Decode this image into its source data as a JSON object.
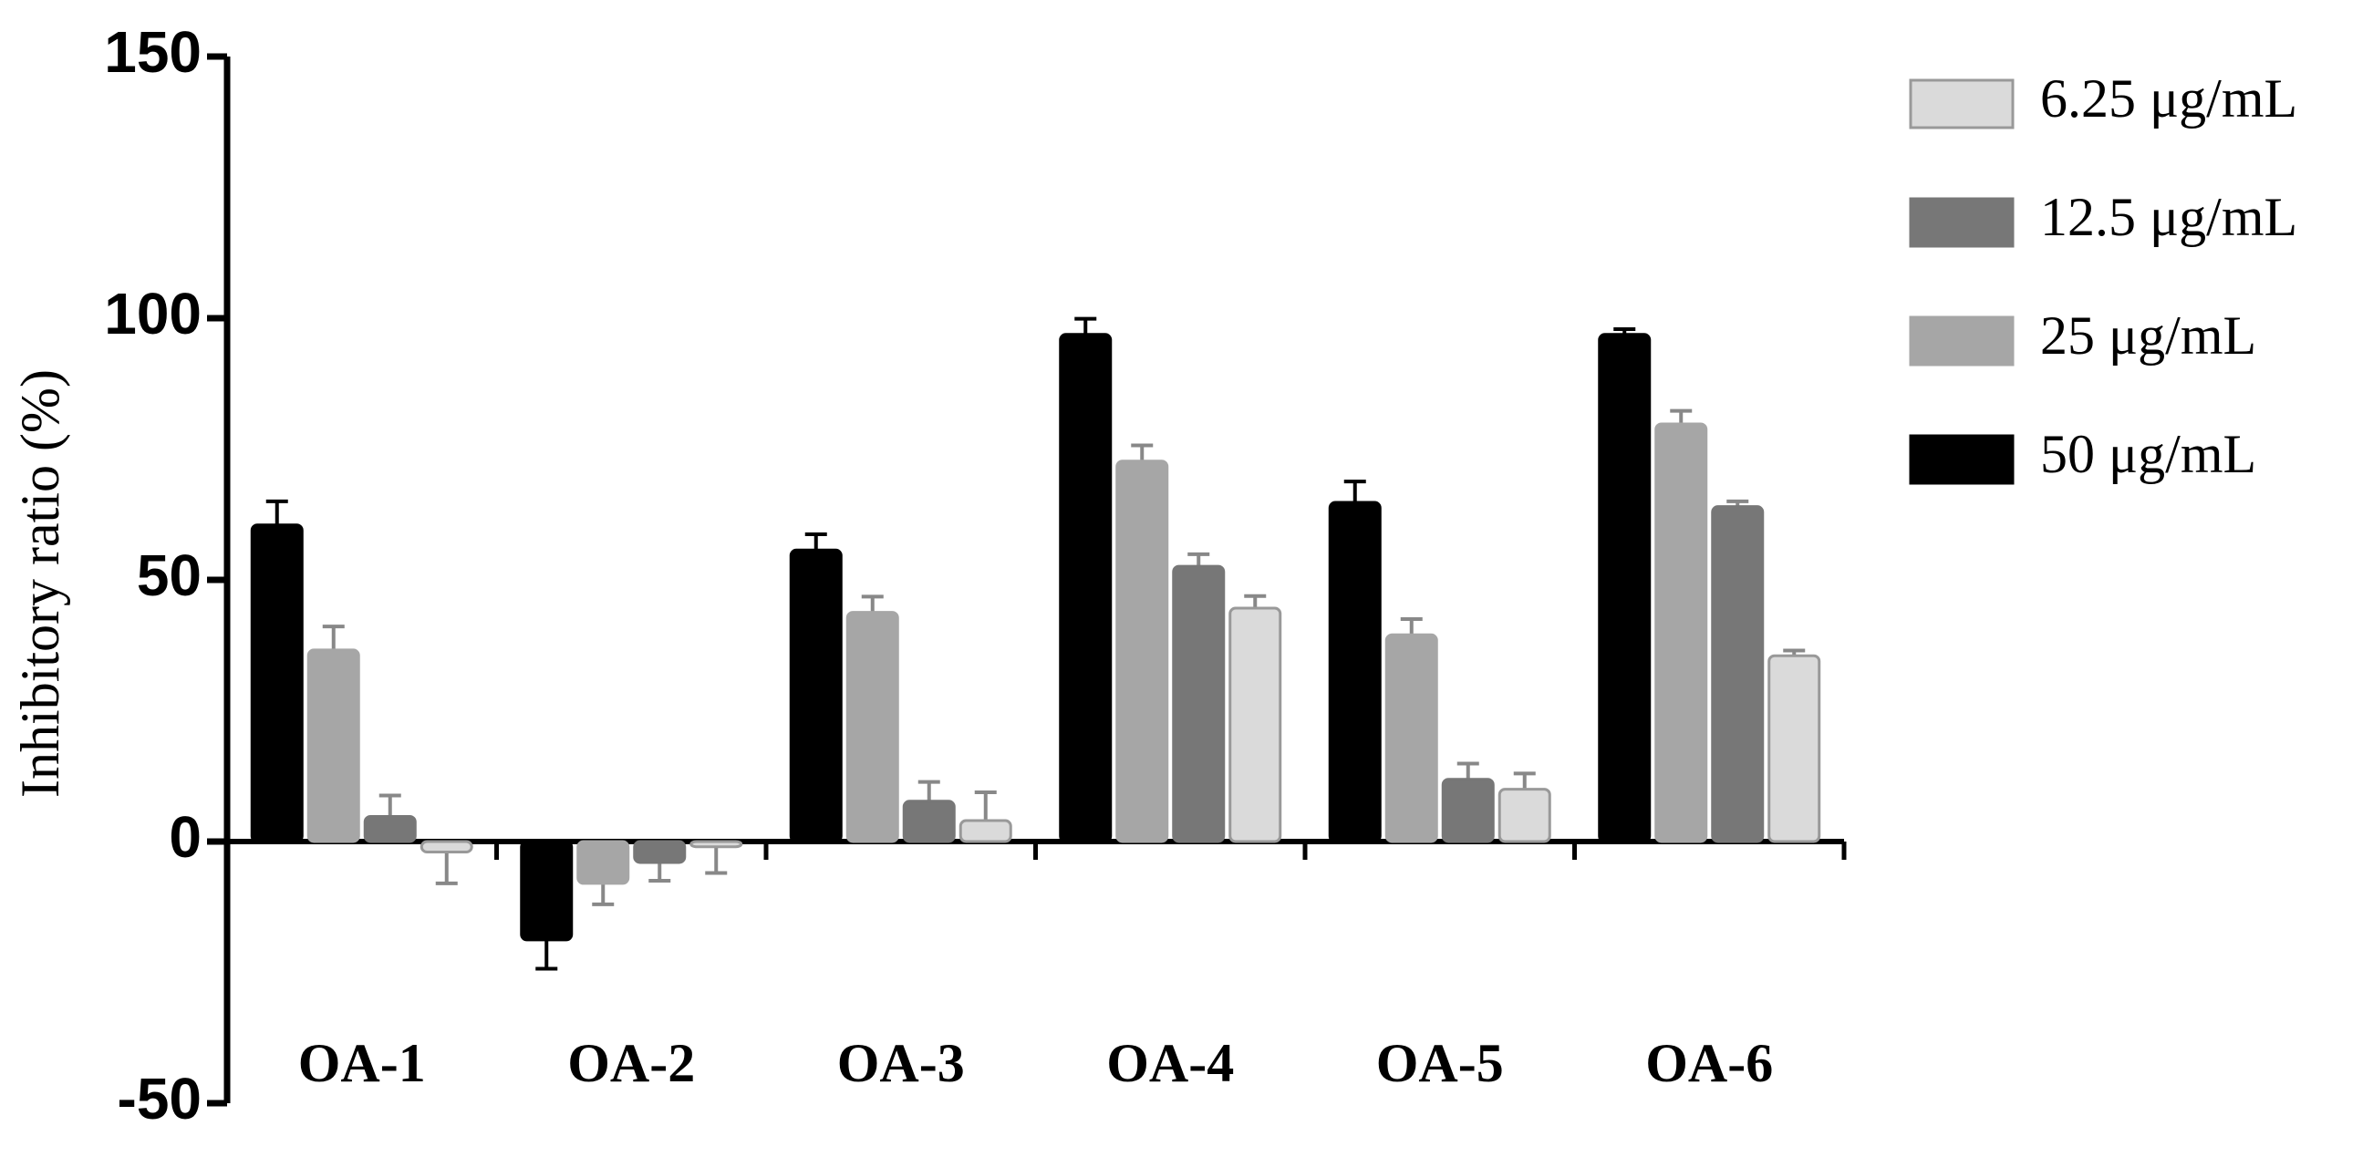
{
  "chart_data": {
    "type": "bar",
    "y_label": "Inhibitory ratio (%)",
    "categories": [
      "OA-1",
      "OA-2",
      "OA-3",
      "OA-4",
      "OA-5",
      "OA-6"
    ],
    "series": [
      {
        "name": "6.25 μg/mL",
        "color": "#dadada",
        "values": [
          -2,
          -1,
          4,
          44.6,
          10,
          35.5
        ],
        "errors": [
          6,
          5,
          5.4,
          2.3,
          3,
          1
        ]
      },
      {
        "name": "12.5 μg/mL",
        "color": "#777777",
        "values": [
          4.8,
          -4,
          7.7,
          52.6,
          11.9,
          64
        ],
        "errors": [
          4,
          3.5,
          3.7,
          2.3,
          3,
          1
        ]
      },
      {
        "name": "25 μg/mL",
        "color": "#a6a6a6",
        "values": [
          36.6,
          -8,
          43.8,
          72.7,
          39.5,
          79.8
        ],
        "errors": [
          4.5,
          4,
          3,
          3,
          3,
          2.5
        ]
      },
      {
        "name": "50 μg/mL",
        "color": "#000000",
        "values": [
          60.5,
          -18.8,
          55.7,
          96.9,
          64.8,
          96.9
        ],
        "errors": [
          4.5,
          5.5,
          3,
          3,
          4,
          1
        ]
      }
    ],
    "ylim": [
      -50,
      150
    ],
    "yticks": [
      150,
      100,
      50,
      0,
      -50
    ],
    "legend": "right"
  }
}
